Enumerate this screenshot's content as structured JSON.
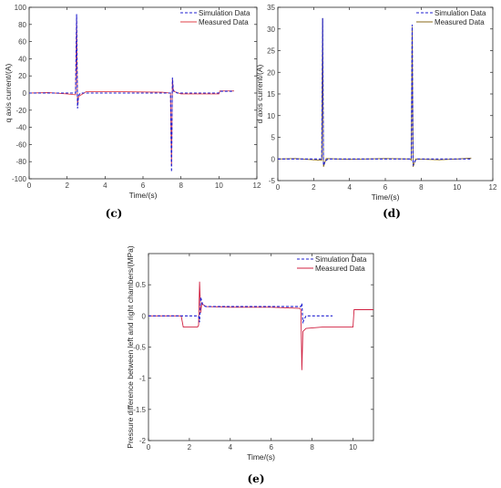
{
  "chart_data": [
    {
      "type": "line",
      "panel_label": "(c)",
      "xlabel": "Time/(s)",
      "ylabel": "q axis current/(A)",
      "xlim": [
        0,
        12
      ],
      "ylim": [
        -100,
        100
      ],
      "xticks": [
        0,
        2,
        4,
        6,
        8,
        10,
        12
      ],
      "yticks": [
        -100,
        -80,
        -60,
        -40,
        -20,
        0,
        20,
        40,
        60,
        80,
        100
      ],
      "legend_position": "top-right",
      "series": [
        {
          "name": "Simulation Data",
          "style": "dashed",
          "color": "#1f1fd0",
          "x": [
            0,
            2.45,
            2.5,
            2.55,
            2.6,
            2.7,
            7.3,
            7.45,
            7.5,
            7.55,
            7.6,
            7.8,
            10.0,
            10.05,
            10.8
          ],
          "y": [
            0,
            0,
            92,
            -18,
            -3,
            0,
            0,
            0,
            -92,
            18,
            3,
            0,
            0,
            2,
            2
          ]
        },
        {
          "name": "Measured Data",
          "style": "solid",
          "color": "#e0404a",
          "x": [
            0,
            1.0,
            2.0,
            2.45,
            2.5,
            2.55,
            2.6,
            3.0,
            5.0,
            7.0,
            7.45,
            7.5,
            7.55,
            7.6,
            8.0,
            9.0,
            10.0,
            10.05,
            10.8
          ],
          "y": [
            0,
            0.5,
            -1,
            -2,
            88,
            -15,
            -4,
            1.5,
            1.5,
            1,
            0,
            -85,
            16,
            2,
            -1,
            -1,
            -1,
            2.5,
            2.5
          ]
        }
      ]
    },
    {
      "type": "line",
      "panel_label": "(d)",
      "xlabel": "Time/(s)",
      "ylabel": "d axis current/(A)",
      "xlim": [
        0,
        12
      ],
      "ylim": [
        -5,
        35
      ],
      "xticks": [
        0,
        2,
        4,
        6,
        8,
        10,
        12
      ],
      "yticks": [
        -5,
        0,
        5,
        10,
        15,
        20,
        25,
        30,
        35
      ],
      "legend_position": "top-right",
      "series": [
        {
          "name": "Simulation Data",
          "style": "dashed",
          "color": "#1f1fd0",
          "x": [
            0,
            2.45,
            2.5,
            2.55,
            2.65,
            2.8,
            7.4,
            7.45,
            7.5,
            7.55,
            7.65,
            7.8,
            10.8
          ],
          "y": [
            0,
            0,
            32.5,
            -1.5,
            -0.5,
            0,
            0,
            0,
            31,
            -1.5,
            -0.5,
            0,
            0
          ]
        },
        {
          "name": "Measured Data",
          "style": "solid",
          "color": "#8a6a1a",
          "x": [
            0,
            1.0,
            2.0,
            2.45,
            2.5,
            2.55,
            2.7,
            4.0,
            6.0,
            7.4,
            7.45,
            7.5,
            7.55,
            7.7,
            9.0,
            10.0,
            10.8
          ],
          "y": [
            0,
            0.1,
            -0.2,
            -0.3,
            32.5,
            -1.8,
            0.1,
            -0.1,
            0.1,
            0,
            -0.3,
            30.5,
            -1.8,
            0,
            -0.2,
            0,
            0.2
          ]
        }
      ]
    },
    {
      "type": "line",
      "panel_label": "(e)",
      "xlabel": "Time/(s)",
      "ylabel": "Pressure difference between left and right chambers/(MPa)",
      "xlim": [
        0,
        11
      ],
      "ylim": [
        -2,
        1
      ],
      "xticks": [
        0,
        2,
        4,
        6,
        8,
        10
      ],
      "yticks": [
        -2,
        -1.5,
        -1,
        -0.5,
        0,
        0.5
      ],
      "legend_position": "top-right",
      "series": [
        {
          "name": "Simulation Data",
          "style": "dashed",
          "color": "#1f1fd0",
          "x": [
            0,
            2.45,
            2.5,
            2.55,
            2.65,
            2.8,
            7.4,
            7.45,
            7.5,
            7.55,
            7.7,
            9.0
          ],
          "y": [
            0,
            0,
            -0.1,
            0.3,
            0.18,
            0.15,
            0.15,
            0.15,
            0.2,
            -0.1,
            0,
            0
          ]
        },
        {
          "name": "Measured Data",
          "style": "solid",
          "color": "#d02040",
          "x": [
            0,
            1.6,
            1.7,
            2.4,
            2.45,
            2.5,
            2.55,
            2.6,
            2.8,
            4.0,
            6.0,
            7.4,
            7.45,
            7.5,
            7.55,
            7.7,
            8.5,
            9.5,
            10.0,
            10.05,
            11.0
          ],
          "y": [
            0,
            0,
            -0.18,
            -0.18,
            -0.15,
            0.55,
            0.05,
            0.2,
            0.15,
            0.14,
            0.14,
            0.12,
            0.1,
            -0.87,
            -0.25,
            -0.2,
            -0.18,
            -0.18,
            -0.18,
            0.1,
            0.1
          ]
        }
      ]
    }
  ]
}
